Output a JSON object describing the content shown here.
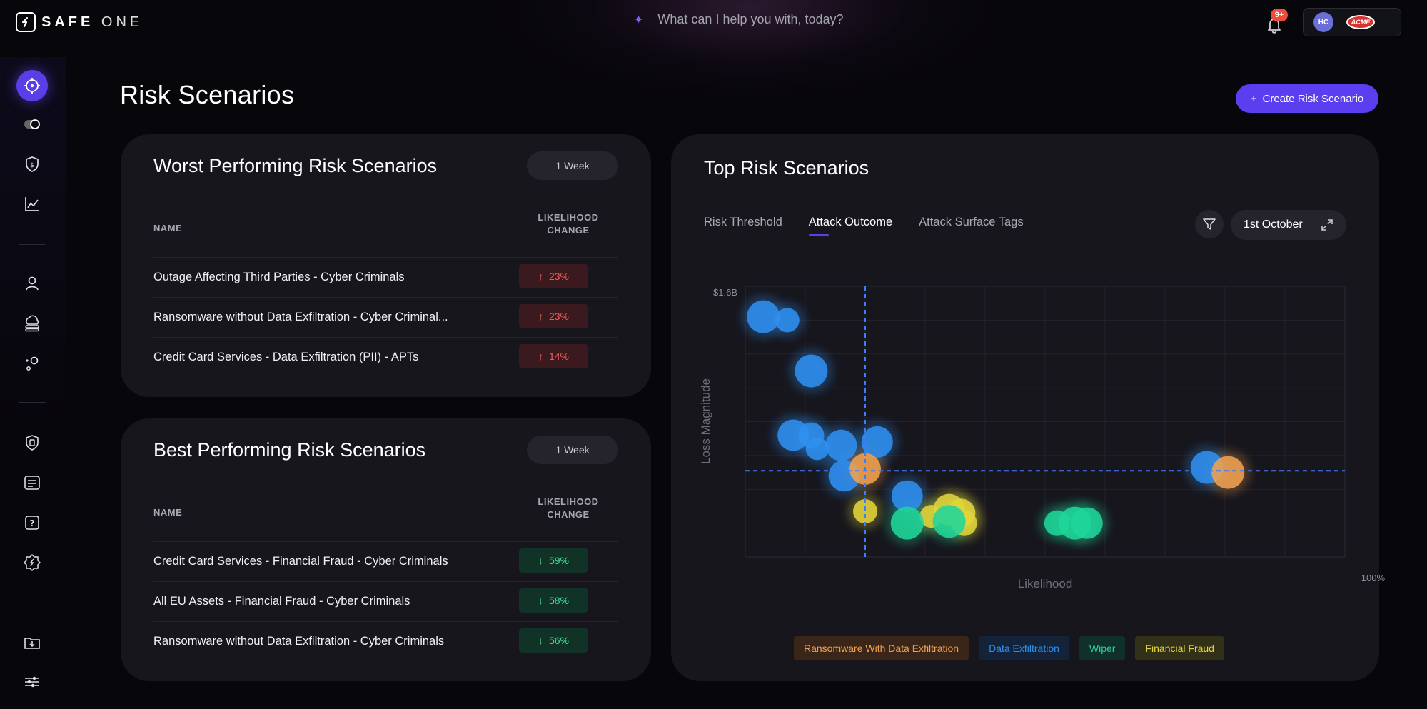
{
  "app": {
    "logo_primary": "SAFE",
    "logo_secondary": "ONE",
    "search_placeholder": "What can I help you with, today?",
    "notifications_badge": "9+",
    "user_initials": "HC",
    "org_logo_text": "ACME"
  },
  "sidebar": {
    "items": [
      {
        "icon": "target-icon",
        "active": true
      },
      {
        "icon": "toggle-icon"
      },
      {
        "icon": "shield-dollar-icon"
      },
      {
        "icon": "trend-chart-icon"
      },
      {
        "icon": "user-icon"
      },
      {
        "icon": "cloud-server-icon"
      },
      {
        "icon": "nodes-icon"
      },
      {
        "icon": "policy-doc-icon"
      },
      {
        "icon": "list-panel-icon"
      },
      {
        "icon": "help-icon"
      },
      {
        "icon": "gear-badge-icon"
      },
      {
        "icon": "folder-download-icon"
      },
      {
        "icon": "sliders-icon"
      }
    ]
  },
  "page": {
    "title": "Risk Scenarios",
    "create_button_label": "Create Risk Scenario"
  },
  "worst": {
    "title": "Worst Performing Risk Scenarios",
    "period": "1 Week",
    "col_name": "NAME",
    "col_change_line1": "LIKELIHOOD",
    "col_change_line2": "CHANGE",
    "rows": [
      {
        "name": "Outage Affecting Third Parties - Cyber Criminals",
        "change": "23%"
      },
      {
        "name": "Ransomware without Data Exfiltration - Cyber Criminal...",
        "change": "23%"
      },
      {
        "name": "Credit Card Services - Data Exfiltration (PII) - APTs",
        "change": "14%"
      }
    ]
  },
  "best": {
    "title": "Best Performing Risk Scenarios",
    "period": "1 Week",
    "col_name": "NAME",
    "col_change_line1": "LIKELIHOOD",
    "col_change_line2": "CHANGE",
    "rows": [
      {
        "name": "Credit Card Services - Financial Fraud - Cyber Criminals",
        "change": "59%"
      },
      {
        "name": "All EU Assets - Financial Fraud - Cyber Criminals",
        "change": "58%"
      },
      {
        "name": "Ransomware without Data Exfiltration - Cyber Criminals",
        "change": "56%"
      }
    ]
  },
  "top": {
    "title": "Top Risk Scenarios",
    "tabs": [
      "Risk Threshold",
      "Attack Outcome",
      "Attack Surface Tags"
    ],
    "active_tab": 1,
    "date_label": "1st October"
  },
  "colors": {
    "accent": "#5b3ef0",
    "blue": "#2f8ff0",
    "orange": "#f0a050",
    "green": "#1fd69a",
    "yellow": "#e2d43a"
  },
  "chart_data": {
    "type": "scatter",
    "title": "Top Risk Scenarios",
    "xlabel": "Likelihood",
    "ylabel": "Loss Magnitude",
    "y_max_label": "$1.6B",
    "x_max_label": "100%",
    "xlim": [
      0,
      100
    ],
    "ylim": [
      0,
      1.6
    ],
    "threshold": {
      "x": 20,
      "y": 0.51
    },
    "legend": [
      {
        "name": "Ransomware With Data Exfiltration",
        "color": "#f0a050",
        "bg": "#3a2618"
      },
      {
        "name": "Data Exfiltration",
        "color": "#2f8ff0",
        "bg": "#13243a"
      },
      {
        "name": "Wiper",
        "color": "#1fd69a",
        "bg": "#10302a"
      },
      {
        "name": "Financial Fraud",
        "color": "#e2d43a",
        "bg": "#33301a"
      }
    ],
    "series": [
      {
        "name": "Data Exfiltration",
        "color": "#2f8ff0",
        "points": [
          {
            "x": 3,
            "y": 1.42,
            "r": 23
          },
          {
            "x": 7,
            "y": 1.4,
            "r": 17
          },
          {
            "x": 11,
            "y": 1.1,
            "r": 23
          },
          {
            "x": 8,
            "y": 0.72,
            "r": 22
          },
          {
            "x": 11,
            "y": 0.72,
            "r": 18
          },
          {
            "x": 12,
            "y": 0.64,
            "r": 16
          },
          {
            "x": 16,
            "y": 0.66,
            "r": 22
          },
          {
            "x": 22,
            "y": 0.68,
            "r": 22
          },
          {
            "x": 16.5,
            "y": 0.48,
            "r": 22
          },
          {
            "x": 27,
            "y": 0.36,
            "r": 22
          },
          {
            "x": 77,
            "y": 0.53,
            "r": 23
          }
        ]
      },
      {
        "name": "Ransomware With Data Exfiltration",
        "color": "#f0a050",
        "points": [
          {
            "x": 20,
            "y": 0.52,
            "r": 22
          },
          {
            "x": 80.5,
            "y": 0.5,
            "r": 23
          }
        ]
      },
      {
        "name": "Financial Fraud",
        "color": "#e2d43a",
        "points": [
          {
            "x": 20,
            "y": 0.27,
            "r": 17
          },
          {
            "x": 34,
            "y": 0.28,
            "r": 22
          },
          {
            "x": 36,
            "y": 0.26,
            "r": 20
          },
          {
            "x": 31,
            "y": 0.24,
            "r": 16
          },
          {
            "x": 36.5,
            "y": 0.2,
            "r": 18
          }
        ]
      },
      {
        "name": "Wiper",
        "color": "#1fd69a",
        "points": [
          {
            "x": 27,
            "y": 0.2,
            "r": 23
          },
          {
            "x": 34,
            "y": 0.21,
            "r": 23
          },
          {
            "x": 52,
            "y": 0.2,
            "r": 18
          },
          {
            "x": 55,
            "y": 0.2,
            "r": 23
          },
          {
            "x": 57,
            "y": 0.2,
            "r": 22
          }
        ]
      }
    ]
  }
}
